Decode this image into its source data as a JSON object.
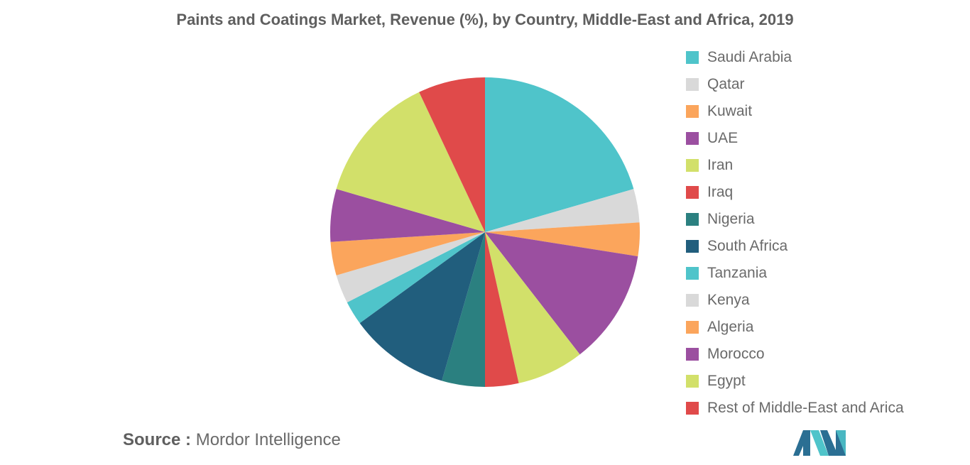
{
  "chart_data": {
    "type": "pie",
    "title": "Paints and Coatings Market, Revenue (%), by Country, Middle-East and Africa, 2019",
    "legend_position": "right",
    "slices": [
      {
        "label": "Saudi Arabia",
        "value": 20.5,
        "color": "#4fc4ca"
      },
      {
        "label": "Qatar",
        "value": 3.5,
        "color": "#d9d9d9"
      },
      {
        "label": "Kuwait",
        "value": 3.5,
        "color": "#fba55c"
      },
      {
        "label": "UAE",
        "value": 12.0,
        "color": "#9b4fa0"
      },
      {
        "label": "Iran",
        "value": 7.0,
        "color": "#d2e06a"
      },
      {
        "label": "Iraq",
        "value": 3.5,
        "color": "#e04a4a"
      },
      {
        "label": "Nigeria",
        "value": 4.5,
        "color": "#2b8080"
      },
      {
        "label": "South Africa",
        "value": 10.5,
        "color": "#215e7d"
      },
      {
        "label": "Tanzania",
        "value": 2.5,
        "color": "#4fc4ca"
      },
      {
        "label": "Kenya",
        "value": 3.0,
        "color": "#d9d9d9"
      },
      {
        "label": "Algeria",
        "value": 3.5,
        "color": "#fba55c"
      },
      {
        "label": "Morocco",
        "value": 5.5,
        "color": "#9b4fa0"
      },
      {
        "label": "Egypt",
        "value": 13.5,
        "color": "#d2e06a"
      },
      {
        "label": "Rest of Middle-East and Arica",
        "value": 7.0,
        "color": "#e04a4a"
      }
    ]
  },
  "source": {
    "label": "Source :",
    "text": "Mordor Intelligence"
  },
  "logo": {
    "icon": "mordor-intelligence-logo-icon",
    "colors": [
      "#2b6f93",
      "#4fc4ca"
    ]
  }
}
